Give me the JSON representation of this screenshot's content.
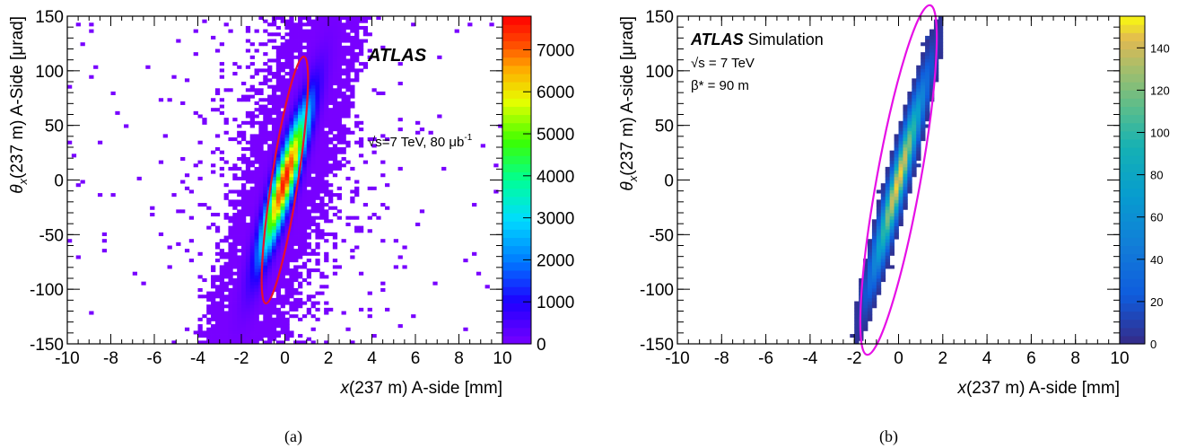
{
  "captions": {
    "a": "(a)",
    "b": "(b)"
  },
  "chart_data": [
    {
      "type": "heatmap",
      "panel_label": "(a)",
      "experiment_label": "ATLAS",
      "energy_label": "√s=7 TeV, 80 μb",
      "energy_label_sup": "-1",
      "xlabel_var": "x",
      "xlabel_rest": "(237 m) A-side [mm]",
      "ylabel_var": "θ",
      "ylabel_sub": "x",
      "ylabel_rest": "(237 m) A-Side [μrad]",
      "xlim": [
        -10,
        10
      ],
      "ylim": [
        -150,
        150
      ],
      "x_ticks": [
        -10,
        -8,
        -6,
        -4,
        -2,
        0,
        2,
        4,
        6,
        8,
        10
      ],
      "y_ticks": [
        -150,
        -100,
        -50,
        0,
        50,
        100,
        150
      ],
      "z_ticks": [
        0,
        1000,
        2000,
        3000,
        4000,
        5000,
        6000,
        7000
      ],
      "zlim": [
        0,
        7800
      ],
      "colormap": "rainbow",
      "peak_count": 7600,
      "distribution": {
        "mean_x": 0.0,
        "mean_theta": 0.0,
        "core_sigma_x_mm": 0.75,
        "core_sigma_theta_urad": 45,
        "correlation": 0.9
      },
      "cut_ellipse": {
        "color": "#e8112d",
        "center": [
          0,
          0
        ],
        "x_extent": [
          -1.6,
          1.6
        ],
        "theta_extent": [
          -113,
          113
        ]
      }
    },
    {
      "type": "heatmap",
      "panel_label": "(b)",
      "experiment_label": "ATLAS",
      "experiment_label_extra": "Simulation",
      "energy_label": "√s = 7 TeV",
      "beta_label": "β* = 90 m",
      "xlabel_var": "x",
      "xlabel_rest": "(237 m) A-side [mm]",
      "ylabel_var": "θ",
      "ylabel_sub": "x",
      "ylabel_rest": "(237 m) A-side [μrad]",
      "xlim": [
        -10,
        10
      ],
      "ylim": [
        -150,
        150
      ],
      "x_ticks": [
        -10,
        -8,
        -6,
        -4,
        -2,
        0,
        2,
        4,
        6,
        8,
        10
      ],
      "y_ticks": [
        -150,
        -100,
        -50,
        0,
        50,
        100,
        150
      ],
      "z_ticks": [
        0,
        20,
        40,
        60,
        80,
        100,
        120,
        140
      ],
      "zlim": [
        0,
        155
      ],
      "colormap": "parula",
      "peak_count": 150,
      "distribution": {
        "mean_x": 0.0,
        "mean_theta": 0.0,
        "core_sigma_x_mm": 0.75,
        "core_sigma_theta_urad": 55,
        "correlation": 0.95
      },
      "cut_ellipse": {
        "color": "#e60fe6",
        "center": [
          0,
          0
        ],
        "x_extent": [
          -2.6,
          2.6
        ],
        "theta_extent": [
          -160,
          160
        ]
      }
    }
  ]
}
